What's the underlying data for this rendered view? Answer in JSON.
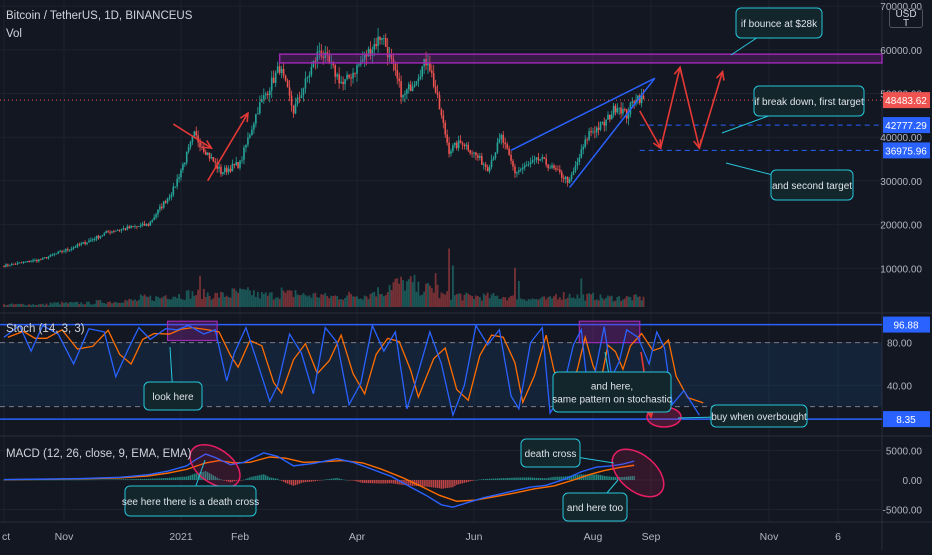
{
  "header": {
    "symbol": "Bitcoin / TetherUS, 1D, BINANCEUS",
    "volume_label": "Vol",
    "stoch_label": "Stoch (14, 3, 3)",
    "macd_label": "MACD (12, 26, close, 9, EMA, EMA)",
    "currency_top": "USD",
    "currency_bottom": "T"
  },
  "colors": {
    "background": "#131722",
    "grid": "#1e222d",
    "up": "#26a69a",
    "down": "#ef5350",
    "annotation_border": "#26c6da",
    "annotation_fill": "#12262b",
    "wedge": "#2962ff",
    "resistance": "#9c27b0",
    "arrow": "#e53935",
    "stoch_k": "#2962ff",
    "stoch_d": "#ff6d00",
    "macd_line": "#2962ff",
    "signal_line": "#ff6d00",
    "axis_text": "#b2b5be"
  },
  "chart_data": [
    {
      "type": "candlestick",
      "pane": "price",
      "y_ticks": [
        10000,
        20000,
        30000,
        40000,
        50000,
        60000,
        70000
      ],
      "y_tick_labels": [
        "10000.00",
        "20000.00",
        "30000.00",
        "40000.00",
        "50000.00",
        "60000.00",
        "70000.00"
      ],
      "ylim": [
        5000,
        71000
      ],
      "x_ticks": [
        "ct",
        "Nov",
        "2021",
        "Feb",
        "Apr",
        "Jun",
        "Aug",
        "Sep",
        "Nov",
        "6"
      ],
      "date_range": [
        "2020-10-01",
        "2021-12-31"
      ],
      "key_points": [
        {
          "date": "2020-10-01",
          "price": 10600
        },
        {
          "date": "2020-10-20",
          "price": 12000
        },
        {
          "date": "2020-11-10",
          "price": 15500
        },
        {
          "date": "2020-11-25",
          "price": 18500
        },
        {
          "date": "2020-12-15",
          "price": 20000
        },
        {
          "date": "2020-12-28",
          "price": 28000
        },
        {
          "date": "2021-01-08",
          "price": 40500
        },
        {
          "date": "2021-01-22",
          "price": 32000
        },
        {
          "date": "2021-02-01",
          "price": 34000
        },
        {
          "date": "2021-02-10",
          "price": 46500
        },
        {
          "date": "2021-02-21",
          "price": 56000
        },
        {
          "date": "2021-02-28",
          "price": 46000
        },
        {
          "date": "2021-03-13",
          "price": 60000
        },
        {
          "date": "2021-03-25",
          "price": 52000
        },
        {
          "date": "2021-04-14",
          "price": 63500
        },
        {
          "date": "2021-04-25",
          "price": 49000
        },
        {
          "date": "2021-05-08",
          "price": 58000
        },
        {
          "date": "2021-05-19",
          "price": 37000
        },
        {
          "date": "2021-05-26",
          "price": 39000
        },
        {
          "date": "2021-06-08",
          "price": 33000
        },
        {
          "date": "2021-06-15",
          "price": 40000
        },
        {
          "date": "2021-06-22",
          "price": 32000
        },
        {
          "date": "2021-07-05",
          "price": 35000
        },
        {
          "date": "2021-07-20",
          "price": 29800
        },
        {
          "date": "2021-07-30",
          "price": 41000
        },
        {
          "date": "2021-08-07",
          "price": 43000
        },
        {
          "date": "2021-08-14",
          "price": 47500
        },
        {
          "date": "2021-08-19",
          "price": 45000
        },
        {
          "date": "2021-08-24",
          "price": 49500
        },
        {
          "date": "2021-08-28",
          "price": 48483
        }
      ],
      "price_tags": [
        {
          "label": "48483.62",
          "value": 48483.62,
          "color": "#ef5350"
        },
        {
          "label": "42777.29",
          "value": 42777.29,
          "color": "#2962ff"
        },
        {
          "label": "36975.96",
          "value": 36975.96,
          "color": "#2962ff"
        }
      ],
      "resistance_zone": {
        "from": "2021-02-21",
        "to": "2021-12-31",
        "low": 57000,
        "high": 59000
      },
      "wedge": [
        {
          "from": {
            "date": "2021-06-20",
            "price": 37000
          },
          "to": {
            "date": "2021-09-03",
            "price": 53500
          }
        },
        {
          "from": {
            "date": "2021-07-20",
            "price": 28500
          },
          "to": {
            "date": "2021-09-03",
            "price": 53500
          }
        }
      ],
      "targets": [
        {
          "name": "first target",
          "value": 42777.29,
          "from": "2021-08-26",
          "to": "2021-10-10"
        },
        {
          "name": "second target",
          "value": 36975.96,
          "from": "2021-08-26",
          "to": "2021-10-10"
        }
      ],
      "arrows": [
        {
          "from": {
            "date": "2020-12-28",
            "price": 43000
          },
          "to": {
            "date": "2021-01-17",
            "price": 37500
          }
        },
        {
          "from": {
            "date": "2021-01-15",
            "price": 30000
          },
          "to": {
            "date": "2021-02-05",
            "price": 45500
          }
        },
        {
          "from": {
            "date": "2021-08-26",
            "price": 46000
          },
          "to": {
            "date": "2021-09-06",
            "price": 37500
          }
        },
        {
          "from": {
            "date": "2021-09-06",
            "price": 37500
          },
          "to": {
            "date": "2021-09-16",
            "price": 56000
          }
        },
        {
          "from": {
            "date": "2021-09-16",
            "price": 56000
          },
          "to": {
            "date": "2021-09-26",
            "price": 37500
          }
        },
        {
          "from": {
            "date": "2021-09-26",
            "price": 37500
          },
          "to": {
            "date": "2021-10-08",
            "price": 55000
          }
        }
      ],
      "annotations": [
        {
          "text": "if bounce at $28k",
          "box_anchor": "top-right"
        },
        {
          "text": "if break down, first target",
          "box_anchor": "right"
        },
        {
          "text": "and second target",
          "box_anchor": "right"
        }
      ]
    },
    {
      "type": "bar",
      "pane": "volume",
      "series": [
        {
          "values": [
            2,
            2,
            3,
            3,
            4,
            5,
            7,
            9,
            10,
            9,
            11,
            9,
            10,
            9,
            8,
            9,
            12,
            18,
            14,
            9,
            8,
            8,
            7,
            6,
            9,
            8,
            7,
            7,
            6
          ]
        }
      ],
      "spikes": [
        {
          "date": "2021-01-11",
          "value": 24
        },
        {
          "date": "2021-02-22",
          "value": 15
        },
        {
          "date": "2021-03-01",
          "value": 13
        },
        {
          "date": "2021-04-18",
          "value": 17
        },
        {
          "date": "2021-05-19",
          "value": 45
        },
        {
          "date": "2021-05-21",
          "value": 32
        },
        {
          "date": "2021-05-12",
          "value": 26
        },
        {
          "date": "2021-06-22",
          "value": 30
        },
        {
          "date": "2021-06-24",
          "value": 20
        },
        {
          "date": "2021-07-26",
          "value": 22
        }
      ]
    },
    {
      "type": "line",
      "pane": "stoch",
      "ylim": [
        0,
        100
      ],
      "y_ticks": [
        40,
        80
      ],
      "y_tick_labels": [
        "40.00",
        "80.00"
      ],
      "upper_band": 80,
      "lower_band": 20,
      "overbought_line": 96.88,
      "oversold_line": 8.35,
      "value_tags": [
        {
          "label": "96.88",
          "value": 96.88
        },
        {
          "label": "8.35",
          "value": 8.35
        }
      ],
      "highlight_boxes": [
        {
          "from": "2020-12-25",
          "to": "2021-01-20",
          "low": 82,
          "high": 100
        },
        {
          "from": "2021-07-25",
          "to": "2021-08-26",
          "low": 80,
          "high": 100
        }
      ],
      "k_points": [
        [
          0,
          85
        ],
        [
          8,
          96
        ],
        [
          14,
          72
        ],
        [
          20,
          96
        ],
        [
          28,
          88
        ],
        [
          36,
          60
        ],
        [
          44,
          93
        ],
        [
          52,
          90
        ],
        [
          58,
          48
        ],
        [
          64,
          72
        ],
        [
          70,
          94
        ],
        [
          76,
          83
        ],
        [
          84,
          93
        ],
        [
          90,
          92
        ],
        [
          96,
          96
        ],
        [
          104,
          88
        ],
        [
          110,
          92
        ],
        [
          116,
          44
        ],
        [
          120,
          70
        ],
        [
          126,
          94
        ],
        [
          132,
          60
        ],
        [
          138,
          25
        ],
        [
          142,
          40
        ],
        [
          148,
          88
        ],
        [
          154,
          70
        ],
        [
          160,
          32
        ],
        [
          166,
          94
        ],
        [
          172,
          80
        ],
        [
          178,
          22
        ],
        [
          184,
          42
        ],
        [
          190,
          96
        ],
        [
          196,
          72
        ],
        [
          202,
          90
        ],
        [
          208,
          18
        ],
        [
          212,
          40
        ],
        [
          220,
          90
        ],
        [
          226,
          60
        ],
        [
          232,
          12
        ],
        [
          238,
          40
        ],
        [
          244,
          96
        ],
        [
          250,
          78
        ],
        [
          256,
          92
        ],
        [
          262,
          30
        ],
        [
          266,
          18
        ],
        [
          272,
          80
        ],
        [
          278,
          94
        ],
        [
          282,
          14
        ],
        [
          288,
          32
        ],
        [
          294,
          78
        ],
        [
          298,
          92
        ],
        [
          302,
          25
        ],
        [
          306,
          60
        ],
        [
          310,
          95
        ],
        [
          314,
          48
        ],
        [
          318,
          62
        ],
        [
          322,
          92
        ],
        [
          328,
          85
        ],
        [
          334,
          60
        ],
        [
          338,
          90
        ],
        [
          342,
          75
        ],
        [
          346,
          22
        ],
        [
          352,
          35
        ],
        [
          360,
          12
        ]
      ],
      "annotations": [
        {
          "text": "look here",
          "box_anchor": "bottom-left"
        },
        {
          "text": "and here,\nsame pattern on stochastic",
          "box_anchor": "bottom-right"
        },
        {
          "text": "buy when overbought",
          "box_anchor": "right"
        }
      ]
    },
    {
      "type": "line",
      "pane": "macd",
      "ylim": [
        -6500,
        6800
      ],
      "y_ticks": [
        -5000,
        0,
        5000
      ],
      "y_tick_labels": [
        "-5000.00",
        "0.00",
        "5000.00"
      ],
      "macd_points": [
        [
          0,
          80
        ],
        [
          20,
          150
        ],
        [
          40,
          250
        ],
        [
          60,
          450
        ],
        [
          75,
          900
        ],
        [
          85,
          1500
        ],
        [
          95,
          2400
        ],
        [
          100,
          3500
        ],
        [
          105,
          4400
        ],
        [
          110,
          3800
        ],
        [
          118,
          2600
        ],
        [
          125,
          3000
        ],
        [
          135,
          4600
        ],
        [
          142,
          4000
        ],
        [
          150,
          2400
        ],
        [
          160,
          2800
        ],
        [
          172,
          3600
        ],
        [
          180,
          3000
        ],
        [
          190,
          1800
        ],
        [
          200,
          600
        ],
        [
          210,
          -1200
        ],
        [
          218,
          -2600
        ],
        [
          226,
          -4200
        ],
        [
          232,
          -4600
        ],
        [
          240,
          -3800
        ],
        [
          248,
          -3000
        ],
        [
          256,
          -2400
        ],
        [
          264,
          -1800
        ],
        [
          272,
          -1200
        ],
        [
          280,
          -900
        ],
        [
          290,
          200
        ],
        [
          298,
          1400
        ],
        [
          306,
          2200
        ],
        [
          314,
          2400
        ],
        [
          320,
          2700
        ],
        [
          326,
          3200
        ]
      ],
      "signal_points": [
        [
          0,
          60
        ],
        [
          20,
          120
        ],
        [
          40,
          200
        ],
        [
          60,
          350
        ],
        [
          75,
          700
        ],
        [
          85,
          1150
        ],
        [
          95,
          1800
        ],
        [
          105,
          2900
        ],
        [
          112,
          3300
        ],
        [
          120,
          2900
        ],
        [
          128,
          3000
        ],
        [
          138,
          3900
        ],
        [
          146,
          3700
        ],
        [
          155,
          3000
        ],
        [
          165,
          3100
        ],
        [
          175,
          3300
        ],
        [
          185,
          2900
        ],
        [
          195,
          1800
        ],
        [
          205,
          500
        ],
        [
          215,
          -1000
        ],
        [
          225,
          -2600
        ],
        [
          234,
          -3600
        ],
        [
          244,
          -3400
        ],
        [
          254,
          -2800
        ],
        [
          264,
          -2200
        ],
        [
          274,
          -1500
        ],
        [
          284,
          -1000
        ],
        [
          294,
          0
        ],
        [
          302,
          900
        ],
        [
          310,
          1600
        ],
        [
          318,
          2100
        ],
        [
          326,
          2500
        ]
      ],
      "annotations": [
        {
          "text": "see here there is a death cross",
          "box_anchor": "bottom"
        },
        {
          "text": "death cross",
          "box_anchor": "top"
        },
        {
          "text": "and here too",
          "box_anchor": "bottom"
        }
      ]
    }
  ]
}
